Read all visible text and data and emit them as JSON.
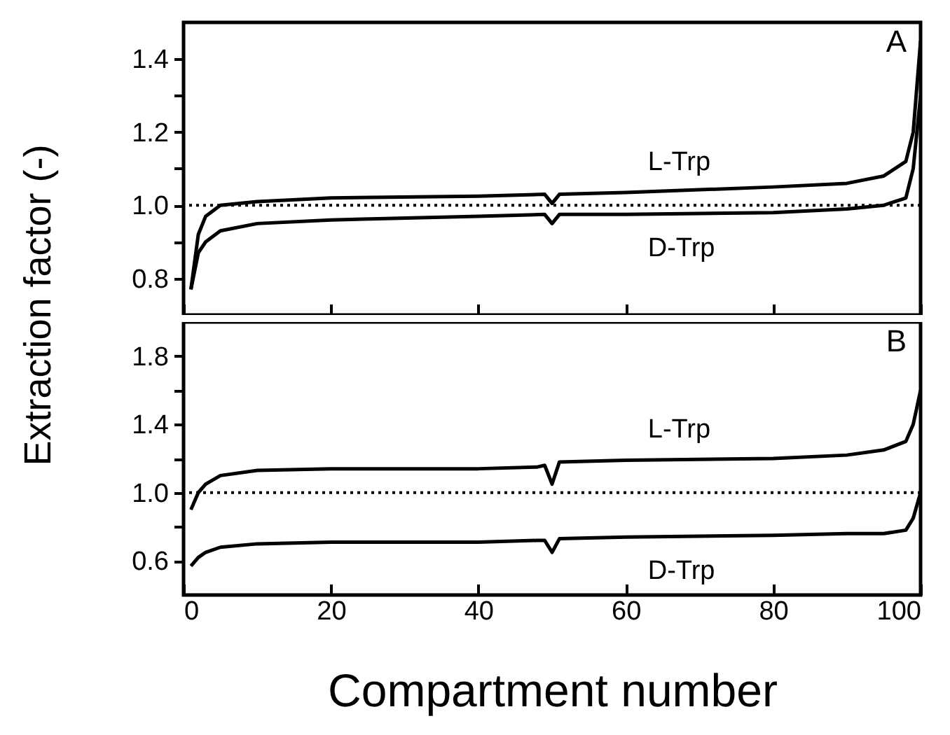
{
  "chart_data": [
    {
      "type": "line",
      "ylabel": "Extraction factor (-)",
      "annotations": [
        "A"
      ],
      "xlim": [
        0,
        100
      ],
      "xticks": [
        0,
        20,
        40,
        60,
        80,
        100
      ],
      "ylim": [
        0.7,
        1.5
      ],
      "yticks": [
        {
          "value": 0.8,
          "label": "0.8"
        },
        {
          "value": 0.9,
          "label": null
        },
        {
          "value": 1.0,
          "label": "1.0"
        },
        {
          "value": 1.1,
          "label": null
        },
        {
          "value": 1.2,
          "label": "1.2"
        },
        {
          "value": 1.3,
          "label": null
        },
        {
          "value": 1.4,
          "label": "1.4"
        }
      ],
      "tick_labels": "y",
      "grid": false,
      "x": [
        1,
        2,
        3,
        5,
        10,
        20,
        40,
        49,
        50,
        51,
        60,
        80,
        90,
        95,
        98,
        99,
        100
      ],
      "series": [
        {
          "name": "L-Trp",
          "color": "#000000",
          "values": [
            0.77,
            0.92,
            0.97,
            1.0,
            1.01,
            1.02,
            1.025,
            1.03,
            1.005,
            1.03,
            1.035,
            1.05,
            1.06,
            1.08,
            1.12,
            1.2,
            1.45
          ]
        },
        {
          "name": "D-Trp",
          "color": "#000000",
          "values": [
            0.77,
            0.87,
            0.9,
            0.93,
            0.95,
            0.96,
            0.97,
            0.975,
            0.95,
            0.975,
            0.975,
            0.98,
            0.99,
            1.0,
            1.02,
            1.1,
            1.3
          ]
        }
      ],
      "ref_lines": [
        {
          "axis": "y",
          "value": 1.0,
          "line_style": "dotted"
        }
      ]
    },
    {
      "type": "line",
      "xlabel": "Compartment number",
      "annotations": [
        "B"
      ],
      "xlim": [
        0,
        100
      ],
      "xticks": [
        0,
        20,
        40,
        60,
        80,
        100
      ],
      "ylim": [
        0.4,
        2.0
      ],
      "yticks": [
        {
          "value": 0.6,
          "label": "0.6"
        },
        {
          "value": 0.8,
          "label": null
        },
        {
          "value": 1.0,
          "label": "1.0"
        },
        {
          "value": 1.2,
          "label": null
        },
        {
          "value": 1.4,
          "label": "1.4"
        },
        {
          "value": 1.6,
          "label": null
        },
        {
          "value": 1.8,
          "label": "1.8"
        }
      ],
      "grid": false,
      "x": [
        1,
        2,
        3,
        5,
        10,
        20,
        40,
        48,
        49,
        50,
        51,
        60,
        80,
        90,
        95,
        98,
        99,
        100
      ],
      "series": [
        {
          "name": "L-Trp",
          "color": "#000000",
          "values": [
            0.9,
            1.0,
            1.05,
            1.1,
            1.13,
            1.14,
            1.14,
            1.15,
            1.16,
            1.05,
            1.18,
            1.19,
            1.2,
            1.22,
            1.25,
            1.3,
            1.4,
            1.6
          ]
        },
        {
          "name": "D-Trp",
          "color": "#000000",
          "values": [
            0.57,
            0.62,
            0.65,
            0.68,
            0.7,
            0.71,
            0.71,
            0.72,
            0.72,
            0.65,
            0.73,
            0.74,
            0.75,
            0.76,
            0.76,
            0.78,
            0.85,
            1.0
          ]
        }
      ],
      "ref_lines": [
        {
          "axis": "y",
          "value": 1.0,
          "line_style": "dotted"
        }
      ]
    }
  ]
}
